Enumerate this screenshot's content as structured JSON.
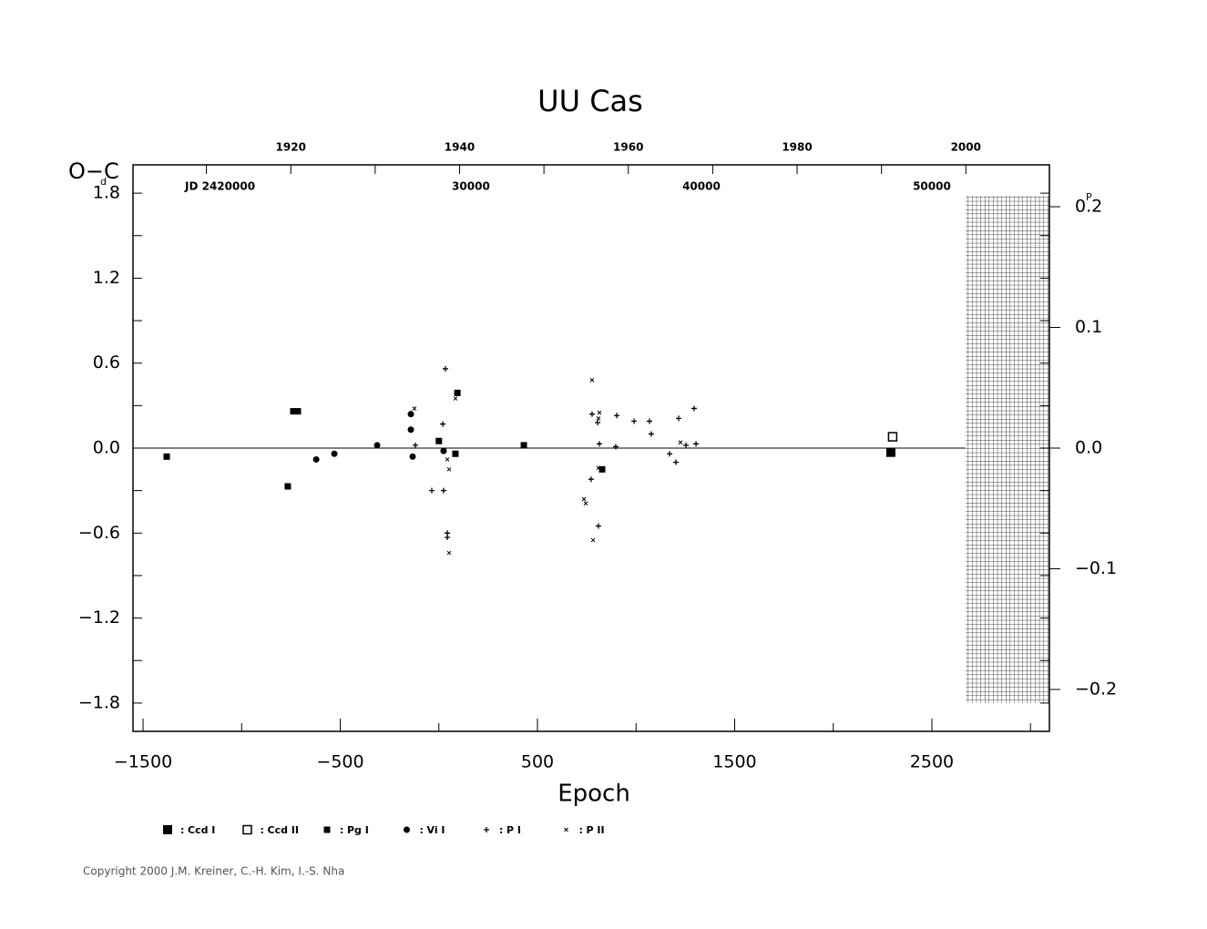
{
  "chart_data": {
    "type": "scatter",
    "title": "UU Cas",
    "x_label": "Epoch",
    "y_label": "O−C",
    "y_unit": "d",
    "y2_unit": "P",
    "jd_label": "JD 2420000",
    "copyright": "Copyright 2000 J.M. Kreiner, C.-H. Kim, I.-S. Nha",
    "xlim": [
      -1551,
      3096
    ],
    "xticks": [
      {
        "value": -1500,
        "label": "−1500"
      },
      {
        "value": -500,
        "label": "−500"
      },
      500,
      1500,
      2500
    ],
    "xminor": [
      -1000,
      0,
      1000,
      2000,
      3000
    ],
    "ylim": [
      -2.0,
      2.0
    ],
    "yticks": [
      {
        "value": -1.8,
        "label": "−1.8"
      },
      {
        "value": -1.2,
        "label": "−1.2"
      },
      {
        "value": -0.6,
        "label": "−0.6"
      },
      {
        "value": 0,
        "label": "0.0"
      },
      0.6,
      1.2,
      1.8
    ],
    "yminor": [
      -1.5,
      -0.9,
      -0.3,
      0.3,
      0.9,
      1.5
    ],
    "y2lim": [
      -0.2347,
      0.2347
    ],
    "y2ticks": [
      {
        "value": -0.2,
        "label": "−0.2"
      },
      {
        "value": -0.1,
        "label": "−0.1"
      },
      {
        "value": 0,
        "label": "0.0"
      },
      0.1,
      0.2
    ],
    "x2lim": [
      1901.3,
      2009.9
    ],
    "x2ticks": [
      1920,
      1940,
      1960,
      1980,
      2000
    ],
    "x2minor": [
      1910,
      1930,
      1950,
      1970,
      1990
    ],
    "x3lim": [
      15340,
      55100
    ],
    "x3ticks": [
      30000,
      40000,
      50000
    ],
    "series": [
      {
        "name": "Ccd I",
        "marker": "square-big",
        "color": "#000000",
        "x": [
          2292
        ],
        "values": [
          -0.03
        ]
      },
      {
        "name": "Ccd II",
        "marker": "square-open",
        "color": "#000000",
        "x": [
          2301
        ],
        "values": [
          0.08
        ]
      },
      {
        "name": "Pg I",
        "marker": "square-small",
        "color": "#000000",
        "x": [
          -1380,
          -766,
          -738,
          -715,
          0,
          84,
          94,
          431,
          828
        ],
        "values": [
          -0.06,
          -0.27,
          0.26,
          0.26,
          0.05,
          -0.04,
          0.39,
          0.02,
          -0.15
        ]
      },
      {
        "name": "Vi I",
        "marker": "circle",
        "color": "#000000",
        "x": [
          -622,
          -530,
          -313,
          -142,
          -142,
          -133,
          24
        ],
        "values": [
          -0.08,
          -0.04,
          0.02,
          0.24,
          0.13,
          -0.06,
          -0.02
        ]
      },
      {
        "name": "P I",
        "marker": "plus",
        "color": "#000000",
        "x": [
          33,
          20,
          -36,
          24,
          43,
          43,
          -119,
          777,
          805,
          814,
          772,
          809,
          902,
          897,
          990,
          1068,
          1077,
          1170,
          1202,
          1216,
          1253,
          1294,
          1304
        ],
        "values": [
          0.56,
          0.17,
          -0.3,
          -0.3,
          -0.6,
          -0.63,
          0.02,
          0.24,
          0.18,
          0.03,
          -0.22,
          -0.55,
          0.23,
          0.01,
          0.19,
          0.19,
          0.1,
          -0.04,
          -0.1,
          0.21,
          0.02,
          0.28,
          0.03
        ]
      },
      {
        "name": "P II",
        "marker": "cross",
        "color": "#000000",
        "x": [
          -124,
          84,
          43,
          52,
          52,
          777,
          814,
          809,
          736,
          745,
          782,
          809,
          1225
        ],
        "values": [
          0.28,
          0.35,
          -0.08,
          -0.15,
          -0.74,
          0.48,
          0.25,
          0.21,
          -0.36,
          -0.39,
          -0.65,
          -0.14,
          0.04
        ]
      }
    ]
  }
}
